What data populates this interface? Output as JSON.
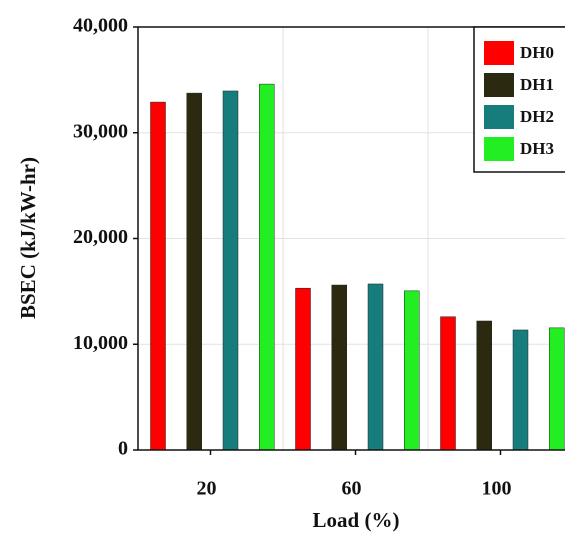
{
  "chart_data": {
    "type": "bar",
    "y_label": "BSEC (kJ/kW-hr)",
    "x_label": "Load (%)",
    "categories": [
      "20",
      "60",
      "100"
    ],
    "series": [
      {
        "name": "DH0",
        "color": "#ff0000",
        "values": [
          32900,
          15300,
          12600
        ]
      },
      {
        "name": "DH1",
        "color": "#2b2a10",
        "values": [
          33750,
          15600,
          12200
        ]
      },
      {
        "name": "DH2",
        "color": "#177c7c",
        "values": [
          33950,
          15700,
          11350
        ]
      },
      {
        "name": "DH3",
        "color": "#22ee22",
        "values": [
          34600,
          15050,
          11550
        ]
      }
    ],
    "ylim": [
      0,
      40000
    ],
    "yticks": [
      0,
      {
        "value": 10000,
        "label": "10,000"
      },
      {
        "value": 20000,
        "label": "20,000"
      },
      {
        "value": 30000,
        "label": "30,000"
      },
      {
        "value": 40000,
        "label": "40,000"
      }
    ],
    "grid": true,
    "legend": "upper right"
  }
}
